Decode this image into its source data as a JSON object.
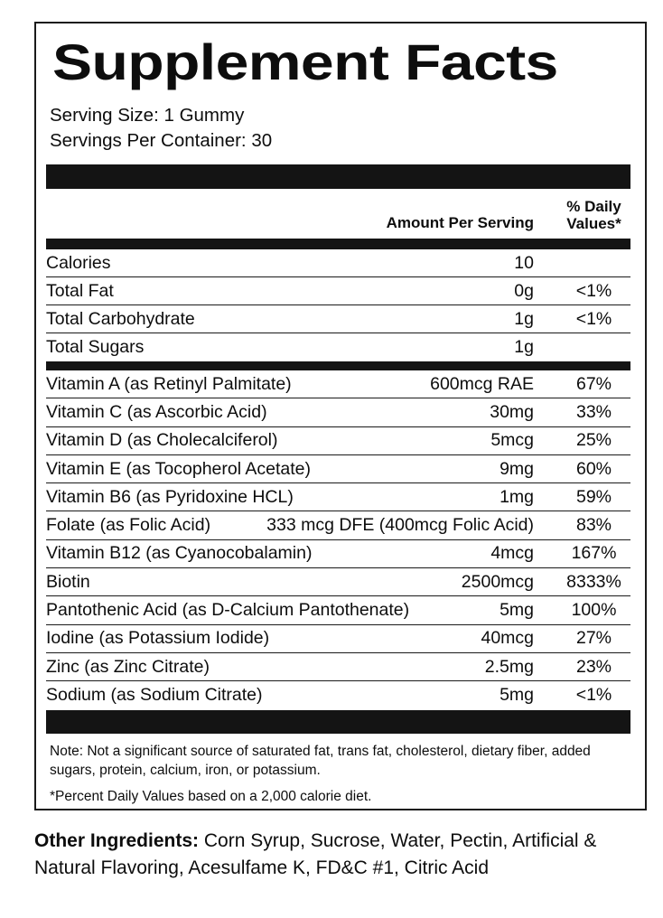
{
  "supplement_facts": {
    "title": "Supplement Facts",
    "serving_size": "Serving Size: 1 Gummy",
    "servings_per_container": "Servings Per Container: 30",
    "columns": {
      "amount_header": "Amount Per Serving",
      "daily_value_header_line1": "% Daily",
      "daily_value_header_line2": "Values*"
    },
    "macro_rows": [
      {
        "name": "Calories",
        "amount": "10",
        "dv": ""
      },
      {
        "name": "Total Fat",
        "amount": "0g",
        "dv": "<1%"
      },
      {
        "name": "Total Carbohydrate",
        "amount": "1g",
        "dv": "<1%"
      },
      {
        "name": "Total Sugars",
        "amount": "1g",
        "dv": ""
      }
    ],
    "nutrient_rows": [
      {
        "name": "Vitamin A (as Retinyl Palmitate)",
        "amount": "600mcg RAE",
        "dv": "67%"
      },
      {
        "name": "Vitamin C (as Ascorbic Acid)",
        "amount": "30mg",
        "dv": "33%"
      },
      {
        "name": "Vitamin D (as Cholecalciferol)",
        "amount": "5mcg",
        "dv": "25%"
      },
      {
        "name": "Vitamin E (as Tocopherol Acetate)",
        "amount": "9mg",
        "dv": "60%"
      },
      {
        "name": "Vitamin B6 (as Pyridoxine HCL)",
        "amount": "1mg",
        "dv": "59%"
      },
      {
        "name": "Folate (as Folic Acid)",
        "amount": "333 mcg DFE (400mcg Folic Acid)",
        "dv": "83%"
      },
      {
        "name": "Vitamin B12 (as Cyanocobalamin)",
        "amount": "4mcg",
        "dv": "167%"
      },
      {
        "name": "Biotin",
        "amount": "2500mcg",
        "dv": "8333%"
      },
      {
        "name": "Pantothenic Acid (as D-Calcium Pantothenate)",
        "amount": "5mg",
        "dv": "100%"
      },
      {
        "name": "Iodine (as Potassium Iodide)",
        "amount": "40mcg",
        "dv": "27%"
      },
      {
        "name": "Zinc (as Zinc Citrate)",
        "amount": "2.5mg",
        "dv": "23%"
      },
      {
        "name": "Sodium (as Sodium Citrate)",
        "amount": "5mg",
        "dv": "<1%"
      }
    ],
    "note": "Note: Not a significant source of saturated fat, trans fat, cholesterol, dietary fiber, added sugars, protein, calcium, iron, or potassium.",
    "footnote": "*Percent Daily Values based on a 2,000 calorie diet."
  },
  "other_ingredients": {
    "label": "Other Ingredients:",
    "text": " Corn Syrup, Sucrose, Water, Pectin, Artificial & Natural Flavoring, Acesulfame K, FD&C #1, Citric Acid"
  },
  "colors": {
    "text": "#0d0d0d",
    "bar": "#141414",
    "background": "#ffffff"
  }
}
